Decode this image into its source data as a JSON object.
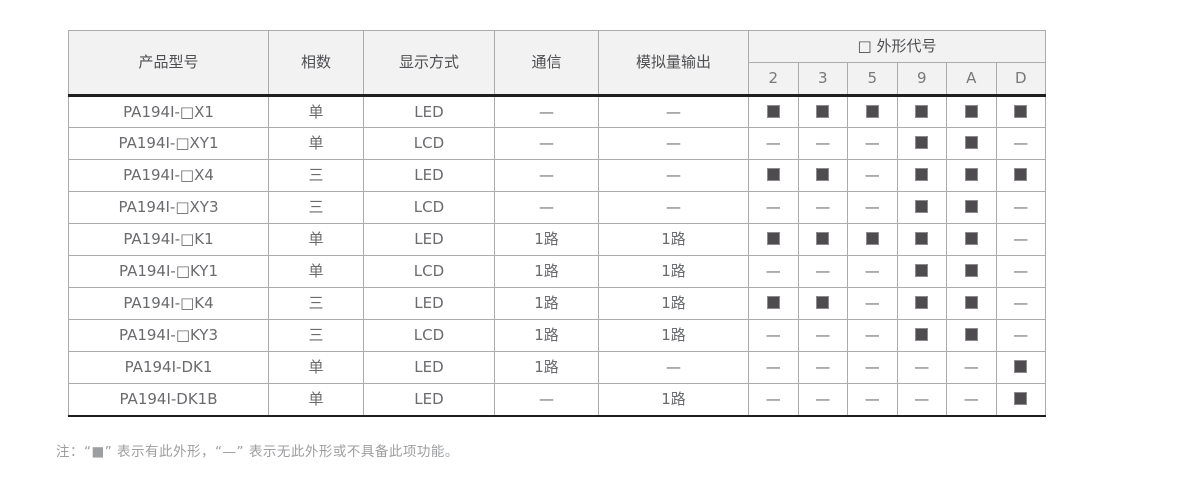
{
  "table": {
    "headers": {
      "product_model": "产品型号",
      "phase": "相数",
      "display": "显示方式",
      "comm": "通信",
      "analog": "模拟量输出",
      "shape_group": "□ 外形代号",
      "shape_codes": [
        "2",
        "3",
        "5",
        "9",
        "A",
        "D"
      ]
    },
    "rows": [
      {
        "model": "PA194I-□X1",
        "phase": "单",
        "display": "LED",
        "comm": "—",
        "analog": "—",
        "shapes": [
          "■",
          "■",
          "■",
          "■",
          "■",
          "■"
        ]
      },
      {
        "model": "PA194I-□XY1",
        "phase": "单",
        "display": "LCD",
        "comm": "—",
        "analog": "—",
        "shapes": [
          "—",
          "—",
          "—",
          "■",
          "■",
          "—"
        ]
      },
      {
        "model": "PA194I-□X4",
        "phase": "三",
        "display": "LED",
        "comm": "—",
        "analog": "—",
        "shapes": [
          "■",
          "■",
          "—",
          "■",
          "■",
          "■"
        ]
      },
      {
        "model": "PA194I-□XY3",
        "phase": "三",
        "display": "LCD",
        "comm": "—",
        "analog": "—",
        "shapes": [
          "—",
          "—",
          "—",
          "■",
          "■",
          "—"
        ]
      },
      {
        "model": "PA194I-□K1",
        "phase": "单",
        "display": "LED",
        "comm": "1路",
        "analog": "1路",
        "shapes": [
          "■",
          "■",
          "■",
          "■",
          "■",
          "—"
        ]
      },
      {
        "model": "PA194I-□KY1",
        "phase": "单",
        "display": "LCD",
        "comm": "1路",
        "analog": "1路",
        "shapes": [
          "—",
          "—",
          "—",
          "■",
          "■",
          "—"
        ]
      },
      {
        "model": "PA194I-□K4",
        "phase": "三",
        "display": "LED",
        "comm": "1路",
        "analog": "1路",
        "shapes": [
          "■",
          "■",
          "—",
          "■",
          "■",
          "—"
        ]
      },
      {
        "model": "PA194I-□KY3",
        "phase": "三",
        "display": "LCD",
        "comm": "1路",
        "analog": "1路",
        "shapes": [
          "—",
          "—",
          "—",
          "■",
          "■",
          "—"
        ]
      },
      {
        "model": "PA194I-DK1",
        "phase": "单",
        "display": "LED",
        "comm": "1路",
        "analog": "—",
        "shapes": [
          "—",
          "—",
          "—",
          "—",
          "—",
          "■"
        ]
      },
      {
        "model": "PA194I-DK1B",
        "phase": "单",
        "display": "LED",
        "comm": "—",
        "analog": "1路",
        "shapes": [
          "—",
          "—",
          "—",
          "—",
          "—",
          "■"
        ]
      }
    ]
  },
  "note": {
    "text": "注：“■” 表示有此外形，“—” 表示无此外形或不具备此项功能。"
  },
  "colors": {
    "header_bg": "#f2f2f2",
    "grid_line": "#aaabad",
    "heavy_line": "#1e1e20",
    "square": "#4f4c4f",
    "square_border": "#8e8c8e",
    "body_text": "#6a6b6e",
    "header_text": "#4e4f52",
    "note_text": "#9d9ea0"
  }
}
